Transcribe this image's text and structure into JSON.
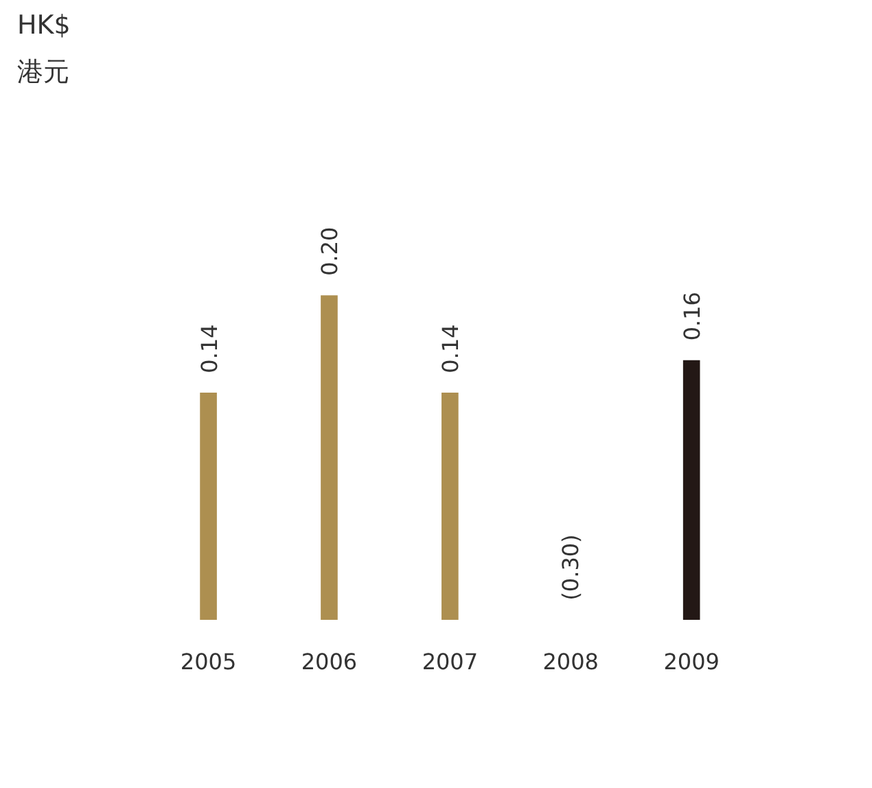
{
  "chart_data": {
    "type": "bar",
    "title": "HK$",
    "subtitle": "港元",
    "categories": [
      "2005",
      "2006",
      "2007",
      "2008",
      "2009"
    ],
    "values": [
      0.14,
      0.2,
      0.14,
      null,
      0.16
    ],
    "value_labels": [
      "0.14",
      "0.20",
      "0.14",
      "(0.30)",
      "0.16"
    ],
    "colors": [
      "#ad8f50",
      "#ad8f50",
      "#ad8f50",
      "#ad8f50",
      "#231815"
    ]
  }
}
